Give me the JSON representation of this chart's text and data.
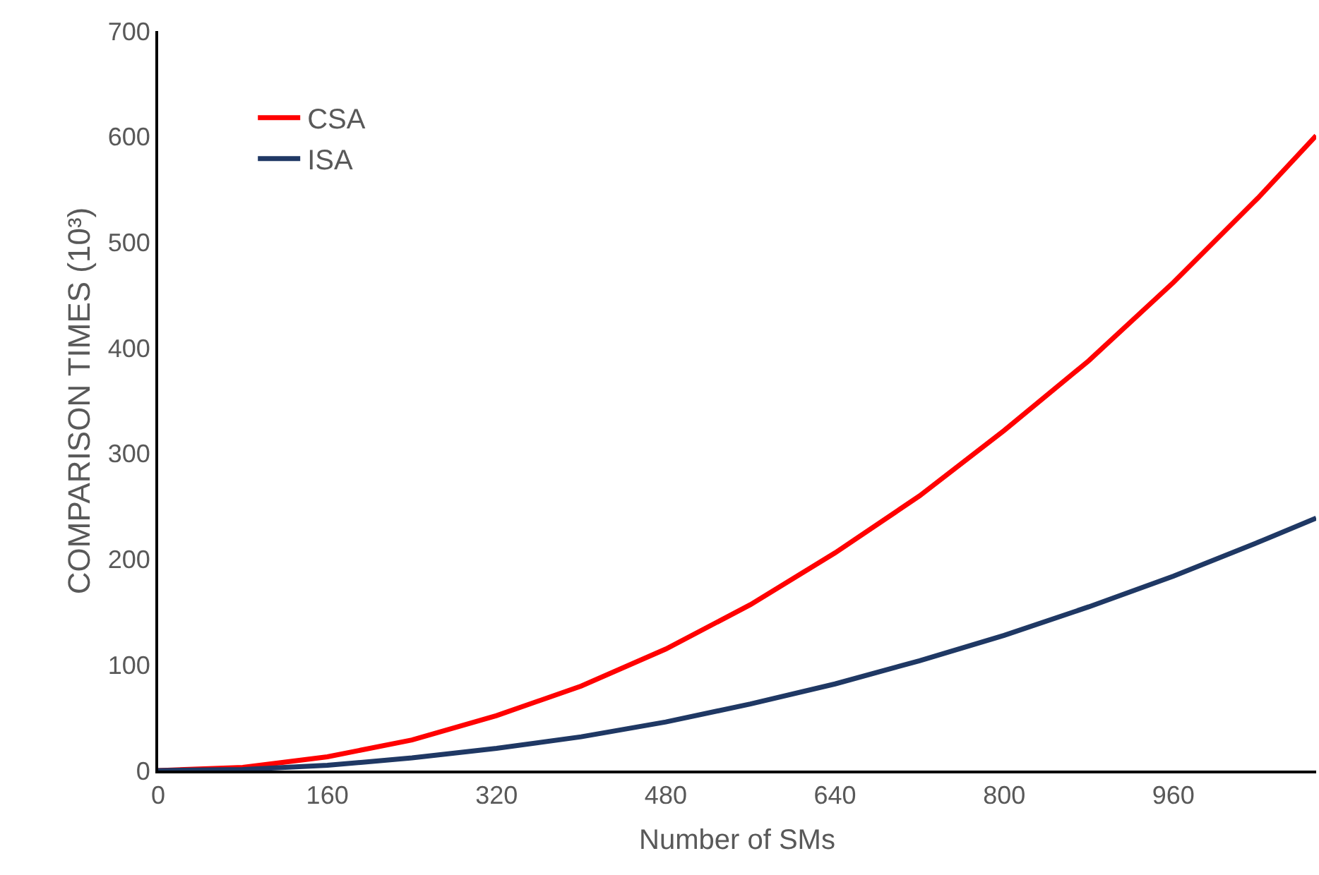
{
  "chart_data": {
    "type": "line",
    "xlabel": "Number of SMs",
    "ylabel": "COMPARISON TIMES (10³)",
    "x": [
      0,
      80,
      160,
      240,
      320,
      400,
      480,
      560,
      640,
      720,
      800,
      880,
      960,
      1040,
      1095
    ],
    "xlim": [
      0,
      1095
    ],
    "xticks": [
      0,
      160,
      320,
      480,
      640,
      800,
      960
    ],
    "ylim": [
      0,
      700
    ],
    "yticks": [
      0,
      100,
      200,
      300,
      400,
      500,
      600,
      700
    ],
    "legend": "top left",
    "marker": "none",
    "line_style": "solid",
    "series": [
      {
        "name": "CSA",
        "color": "#ff0000",
        "values": [
          0,
          3,
          13,
          29,
          52,
          80,
          115,
          157,
          206,
          260,
          322,
          388,
          462,
          542,
          601
        ]
      },
      {
        "name": "ISA",
        "color": "#1f3864",
        "values": [
          0,
          1,
          5,
          12,
          21,
          32,
          46,
          63,
          82,
          104,
          128,
          155,
          184,
          216,
          239
        ]
      }
    ]
  }
}
